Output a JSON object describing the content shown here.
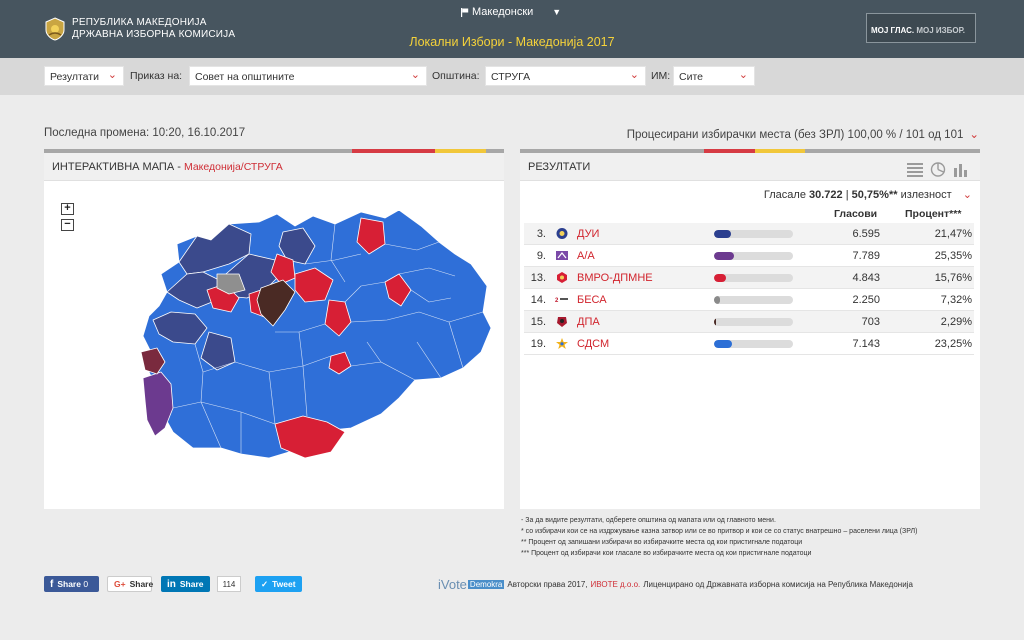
{
  "header": {
    "org_line1": "РЕПУБЛИКА МАКЕДОНИЈА",
    "org_line2": "ДРЖАВНА ИЗБОРНА КОМИСИЈА",
    "language": "Македонски",
    "title": "Локални Избори - Македонија 2017",
    "moj_glas": "МОЈ ГЛАС.",
    "moj_izbor": "МОЈ ИЗБОР."
  },
  "filters": {
    "results_value": "Резултати",
    "view_label": "Приказ на:",
    "view_value": "Совет на општините",
    "municipality_label": "Општина:",
    "municipality_value": "СТРУГА",
    "im_label": "ИМ:",
    "im_value": "Сите"
  },
  "status": {
    "last_change": "Последна промена: 10:20, 16.10.2017",
    "processed": "Процесирани избирачки места (без ЗРЛ) 100,00 % / 101 од 101"
  },
  "map_panel": {
    "title": "ИНТЕРАКТИВНА МАПА",
    "separator": " - ",
    "crumb": "Македонија/СТРУГА",
    "zoom_in": "+",
    "zoom_out": "−"
  },
  "results_panel": {
    "title": "РЕЗУЛТАТИ",
    "turnout_label": "Гласале",
    "turnout_votes": "30.722",
    "turnout_sep": "|",
    "turnout_pct": "50,75%**",
    "turnout_word": "излезност",
    "col_votes": "Гласови",
    "col_percent": "Процент***",
    "rows": [
      {
        "num": "3.",
        "party": "ДУИ",
        "votes": "6.595",
        "percent": "21,47%",
        "share": 21.47,
        "color": "#2b3f8f"
      },
      {
        "num": "9.",
        "party": "А/А",
        "votes": "7.789",
        "percent": "25,35%",
        "share": 25.35,
        "color": "#6c3a8f"
      },
      {
        "num": "13.",
        "party": "ВМРО-ДПМНЕ",
        "votes": "4.843",
        "percent": "15,76%",
        "share": 15.76,
        "color": "#d71f35"
      },
      {
        "num": "14.",
        "party": "БЕСА",
        "votes": "2.250",
        "percent": "7,32%",
        "share": 7.32,
        "color": "#8a8a8a"
      },
      {
        "num": "15.",
        "party": "ДПА",
        "votes": "703",
        "percent": "2,29%",
        "share": 2.29,
        "color": "#4a2a24"
      },
      {
        "num": "19.",
        "party": "СДСМ",
        "votes": "7.143",
        "percent": "23,25%",
        "share": 23.25,
        "color": "#2c6fd6"
      }
    ]
  },
  "notes": [
    "- За да видите резултати, одберете општина од мапата или од главното мени.",
    "* со избирачи кои се на издржување казна затвор или се во притвор и кои се со статус внатрешно – раселени лица (ЗРЛ)",
    "** Процент од запишани избирачи во избирачките места од кои пристигнале податоци",
    "*** Процент од избирачи кои гласале во избирачките места од кои пристигнале податоци"
  ],
  "share": {
    "facebook": "Share",
    "facebook_count": "0",
    "google": "Share",
    "linkedin": "Share",
    "linkedin_count": "114",
    "twitter": "Tweet"
  },
  "footer": {
    "ivote": "iVote",
    "demokra": "Demokra",
    "copyright": "Авторски права 2017,",
    "company": "ИВОТЕ д.о.о.",
    "license": "Лиценцирано од Државната изборна комисија на Република Македонија"
  },
  "colors": {
    "header_bg": "#47555f",
    "title_yellow": "#f5d23a",
    "accent_red": "#cf2e36",
    "sdsm_blue": "#2c6fd6",
    "dui_navy": "#3b4a8c"
  }
}
